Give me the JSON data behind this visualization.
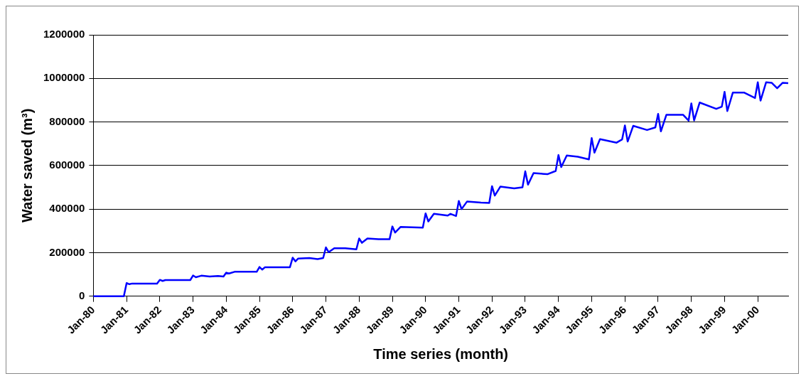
{
  "chart_data": {
    "type": "line",
    "xlabel": "Time series (month)",
    "ylabel": "Water saved (m³)",
    "x": [
      "1980-01",
      "1980-12",
      "1981-01",
      "1981-02",
      "1981-03",
      "1981-12",
      "1982-01",
      "1982-02",
      "1982-03",
      "1982-12",
      "1983-01",
      "1983-02",
      "1983-04",
      "1983-07",
      "1983-10",
      "1983-12",
      "1984-01",
      "1984-02",
      "1984-04",
      "1984-12",
      "1985-01",
      "1985-02",
      "1985-03",
      "1985-12",
      "1986-01",
      "1986-02",
      "1986-03",
      "1986-07",
      "1986-10",
      "1986-12",
      "1987-01",
      "1987-02",
      "1987-04",
      "1987-08",
      "1987-12",
      "1988-01",
      "1988-02",
      "1988-04",
      "1988-08",
      "1988-12",
      "1989-01",
      "1989-02",
      "1989-04",
      "1989-08",
      "1989-12",
      "1990-01",
      "1990-02",
      "1990-04",
      "1990-09",
      "1990-10",
      "1990-12",
      "1991-01",
      "1991-02",
      "1991-04",
      "1991-09",
      "1991-12",
      "1992-01",
      "1992-02",
      "1992-04",
      "1992-09",
      "1992-12",
      "1993-01",
      "1993-02",
      "1993-04",
      "1993-09",
      "1993-12",
      "1994-01",
      "1994-02",
      "1994-04",
      "1994-08",
      "1994-12",
      "1995-01",
      "1995-02",
      "1995-04",
      "1995-10",
      "1995-12",
      "1996-01",
      "1996-02",
      "1996-04",
      "1996-09",
      "1996-12",
      "1997-01",
      "1997-02",
      "1997-04",
      "1997-10",
      "1997-12",
      "1998-01",
      "1998-02",
      "1998-04",
      "1998-10",
      "1998-12",
      "1999-01",
      "1999-02",
      "1999-04",
      "1999-08",
      "1999-12",
      "2000-01",
      "2000-02",
      "2000-04",
      "2000-06",
      "2000-08",
      "2000-10",
      "2000-12"
    ],
    "series": [
      {
        "color": "#0000ff",
        "values": [
          0,
          0,
          60000,
          55000,
          58000,
          58000,
          75000,
          70000,
          74000,
          74000,
          95000,
          87000,
          94000,
          90000,
          93000,
          90000,
          108000,
          104000,
          112000,
          112000,
          134000,
          122000,
          133000,
          133000,
          177000,
          160000,
          173000,
          175000,
          170000,
          175000,
          224000,
          202000,
          220000,
          220000,
          215000,
          265000,
          245000,
          265000,
          262000,
          262000,
          320000,
          292000,
          318000,
          316000,
          315000,
          380000,
          343000,
          378000,
          370000,
          378000,
          368000,
          437000,
          400000,
          435000,
          430000,
          428000,
          505000,
          462000,
          503000,
          495000,
          500000,
          573000,
          512000,
          565000,
          560000,
          575000,
          648000,
          593000,
          646000,
          640000,
          628000,
          726000,
          659000,
          721000,
          705000,
          720000,
          784000,
          710000,
          782000,
          763000,
          775000,
          837000,
          757000,
          833000,
          833000,
          806000,
          885000,
          807000,
          889000,
          860000,
          870000,
          938000,
          850000,
          935000,
          935000,
          910000,
          982000,
          898000,
          982000,
          980000,
          955000,
          980000,
          978000
        ]
      }
    ],
    "xlim": [
      "1980-01",
      "2000-12"
    ],
    "xticks": [
      {
        "value": "1980-01",
        "label": "Jan-80"
      },
      {
        "value": "1981-01",
        "label": "Jan-81"
      },
      {
        "value": "1982-01",
        "label": "Jan-82"
      },
      {
        "value": "1983-01",
        "label": "Jan-83"
      },
      {
        "value": "1984-01",
        "label": "Jan-84"
      },
      {
        "value": "1985-01",
        "label": "Jan-85"
      },
      {
        "value": "1986-01",
        "label": "Jan-86"
      },
      {
        "value": "1987-01",
        "label": "Jan-87"
      },
      {
        "value": "1988-01",
        "label": "Jan-88"
      },
      {
        "value": "1989-01",
        "label": "Jan-89"
      },
      {
        "value": "1990-01",
        "label": "Jan-90"
      },
      {
        "value": "1991-01",
        "label": "Jan-91"
      },
      {
        "value": "1992-01",
        "label": "Jan-92"
      },
      {
        "value": "1993-01",
        "label": "Jan-93"
      },
      {
        "value": "1994-01",
        "label": "Jan-94"
      },
      {
        "value": "1995-01",
        "label": "Jan-95"
      },
      {
        "value": "1996-01",
        "label": "Jan-96"
      },
      {
        "value": "1997-01",
        "label": "Jan-97"
      },
      {
        "value": "1998-01",
        "label": "Jan-98"
      },
      {
        "value": "1999-01",
        "label": "Jan-99"
      },
      {
        "value": "2000-01",
        "label": "Jan-00"
      }
    ],
    "ylim": [
      0,
      1200000
    ],
    "yticks": [
      0,
      200000,
      400000,
      600000,
      800000,
      1000000,
      1200000
    ],
    "grid": "y",
    "legend": false,
    "marker": "none",
    "line_style": "solid"
  }
}
